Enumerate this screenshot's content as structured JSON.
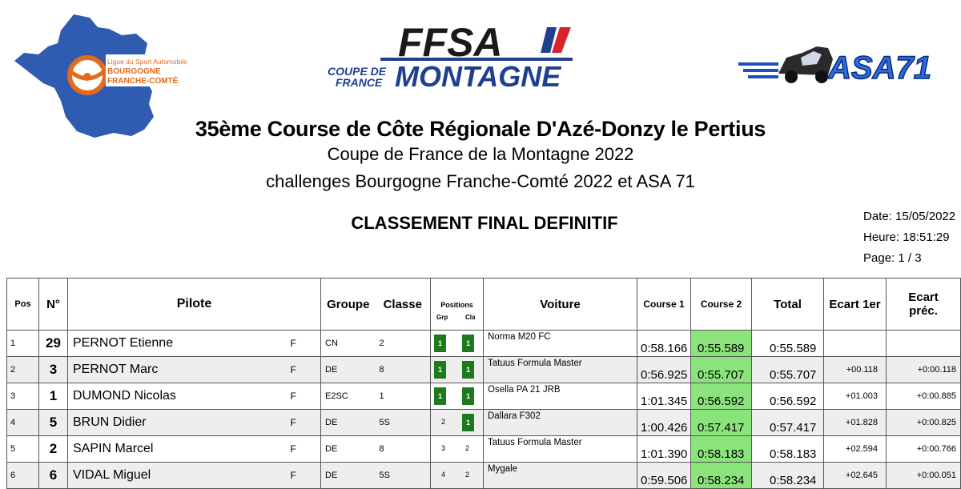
{
  "logos": {
    "left_text_1": "Ligue du Sport Automobile",
    "left_text_2": "BOURGOGNE",
    "left_text_3": "FRANCHE-COMTÉ",
    "ffsa": "FFSA",
    "coupe_1": "COUPE DE",
    "coupe_2": "FRANCE",
    "montagne": "MONTAGNE",
    "asa": "ASA71"
  },
  "header": {
    "title": "35ème Course de Côte Régionale D'Azé-Donzy le Pertius",
    "subtitle1": "Coupe de France de la Montagne 2022",
    "subtitle2": "challenges Bourgogne Franche-Comté 2022 et ASA 71",
    "classement": "CLASSEMENT FINAL DEFINITIF"
  },
  "meta": {
    "date": "Date: 15/05/2022",
    "time": "Heure: 18:51:29",
    "page": "Page: 1 / 3"
  },
  "table": {
    "headers": {
      "pos": "Pos",
      "num": "N°",
      "pilote": "Pilote",
      "groupe": "Groupe",
      "classe": "Classe",
      "positions": "Positions",
      "grp": "Grp",
      "cla": "Cla",
      "voiture": "Voiture",
      "course1": "Course 1",
      "course2": "Course 2",
      "total": "Total",
      "ecart1": "Ecart 1er",
      "ecart_prec_1": "Ecart",
      "ecart_prec_2": "préc."
    },
    "colors": {
      "position_box": "#1d7a1d",
      "course2_highlight": "#8be37b",
      "alt_row": "#eeeeee"
    },
    "rows": [
      {
        "pos": "1",
        "num": "29",
        "pilote": "PERNOT Etienne",
        "sexe": "F",
        "groupe": "CN",
        "classe": "2",
        "pos_grp": "1",
        "pos_cla": "1",
        "grp_box": true,
        "cla_box": true,
        "voiture": "Norma M20 FC",
        "course1": "0:58.166",
        "course2": "0:55.589",
        "total": "0:55.589",
        "ecart1": "",
        "ecart_prec": ""
      },
      {
        "pos": "2",
        "num": "3",
        "pilote": "PERNOT Marc",
        "sexe": "F",
        "groupe": "DE",
        "classe": "8",
        "pos_grp": "1",
        "pos_cla": "1",
        "grp_box": true,
        "cla_box": true,
        "voiture": "Tatuus Formula Master",
        "course1": "0:56.925",
        "course2": "0:55.707",
        "total": "0:55.707",
        "ecart1": "+00.118",
        "ecart_prec": "+0:00.118"
      },
      {
        "pos": "3",
        "num": "1",
        "pilote": "DUMOND Nicolas",
        "sexe": "F",
        "groupe": "E2SC",
        "classe": "1",
        "pos_grp": "1",
        "pos_cla": "1",
        "grp_box": true,
        "cla_box": true,
        "voiture": "Osella PA 21 JRB",
        "course1": "1:01.345",
        "course2": "0:56.592",
        "total": "0:56.592",
        "ecart1": "+01.003",
        "ecart_prec": "+0:00.885"
      },
      {
        "pos": "4",
        "num": "5",
        "pilote": "BRUN Didier",
        "sexe": "F",
        "groupe": "DE",
        "classe": "5S",
        "pos_grp": "2",
        "pos_cla": "1",
        "grp_box": false,
        "cla_box": true,
        "voiture": "Dallara F302",
        "course1": "1:00.426",
        "course2": "0:57.417",
        "total": "0:57.417",
        "ecart1": "+01.828",
        "ecart_prec": "+0:00.825"
      },
      {
        "pos": "5",
        "num": "2",
        "pilote": "SAPIN Marcel",
        "sexe": "F",
        "groupe": "DE",
        "classe": "8",
        "pos_grp": "3",
        "pos_cla": "2",
        "grp_box": false,
        "cla_box": false,
        "voiture": "Tatuus Formula Master",
        "course1": "1:01.390",
        "course2": "0:58.183",
        "total": "0:58.183",
        "ecart1": "+02.594",
        "ecart_prec": "+0:00.766"
      },
      {
        "pos": "6",
        "num": "6",
        "pilote": "VIDAL Miguel",
        "sexe": "F",
        "groupe": "DE",
        "classe": "5S",
        "pos_grp": "4",
        "pos_cla": "2",
        "grp_box": false,
        "cla_box": false,
        "voiture": "Mygale",
        "course1": "0:59.506",
        "course2": "0:58.234",
        "total": "0:58.234",
        "ecart1": "+02.645",
        "ecart_prec": "+0:00.051"
      }
    ]
  }
}
